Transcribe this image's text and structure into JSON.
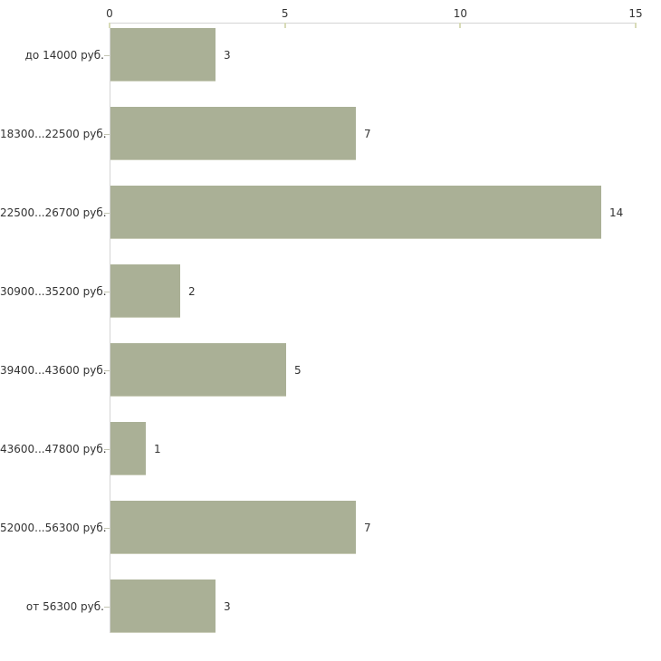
{
  "chart_data": {
    "type": "bar",
    "orientation": "horizontal",
    "title": "",
    "xlabel": "",
    "ylabel": "",
    "categories": [
      "до 14000 руб.",
      "18300...22500 руб.",
      "22500...26700 руб.",
      "30900...35200 руб.",
      "39400...43600 руб.",
      "43600...47800 руб.",
      "52000...56300 руб.",
      "от 56300 руб."
    ],
    "values": [
      3,
      7,
      14,
      2,
      5,
      1,
      7,
      3
    ],
    "x_ticks": [
      0,
      5,
      10,
      15
    ],
    "xlim": [
      0,
      15
    ],
    "grid": "none",
    "legend": "none",
    "value_labels_shown": true,
    "colors": {
      "bar_fill": "#aab096",
      "bar_edge": "#c9ccb8",
      "axis_line": "#d4d4d4",
      "tick_mark": "#d8dbb8",
      "row_tick": "#c4c6b4",
      "text": "#333333",
      "background": "#ffffff"
    }
  }
}
